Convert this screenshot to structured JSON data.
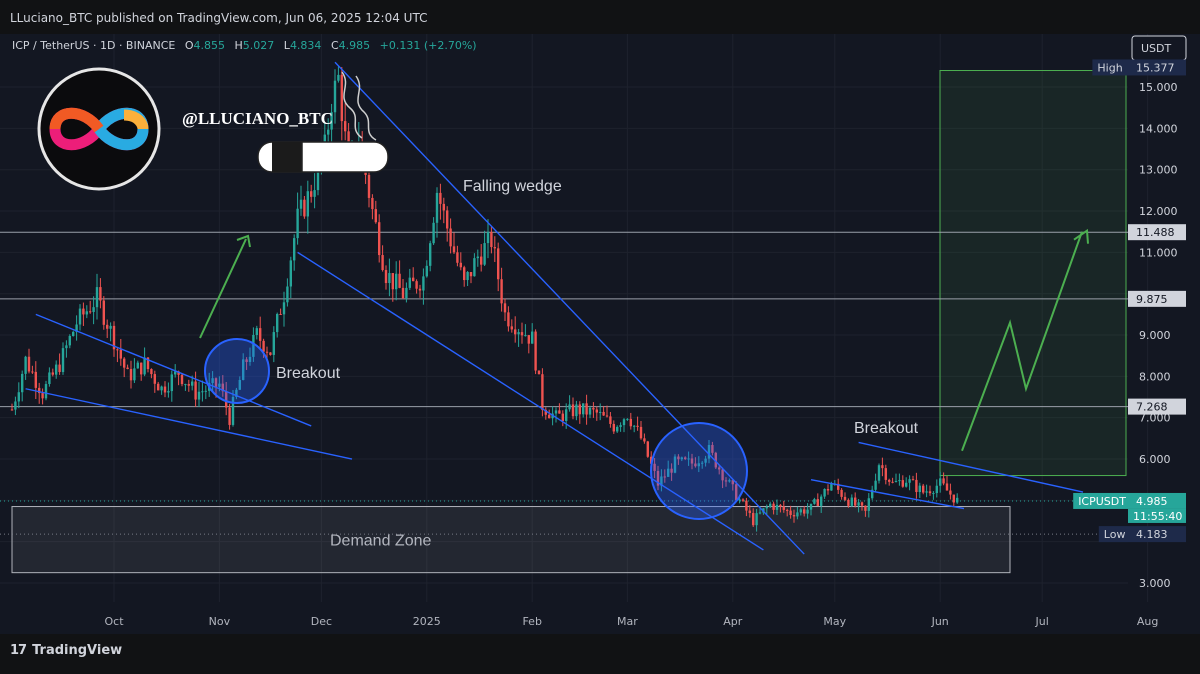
{
  "publisher": "LLuciano_BTC published on TradingView.com, Jun 06, 2025 12:04 UTC",
  "footer_brand": "TradingView",
  "legend": {
    "symbol": "ICP / TetherUS · 1D · BINANCE",
    "o_label": "O",
    "o": "4.855",
    "h_label": "H",
    "h": "5.027",
    "l_label": "L",
    "l": "4.834",
    "c_label": "C",
    "c": "4.985",
    "change": "+0.131 (+2.70%)"
  },
  "handle": "@LLUCIANO_BTC",
  "currency": "USDT",
  "annotations": {
    "falling_wedge": "Falling wedge",
    "breakout_left": "Breakout",
    "breakout_right": "Breakout",
    "demand_zone": "Demand Zone"
  },
  "price_tags": {
    "high_label": "High",
    "high_value": "15.377",
    "level_1": "11.488",
    "level_2": "9.875",
    "level_3": "7.268",
    "current_label": "ICPUSDT",
    "current_value": "4.985",
    "countdown": "11:55:40",
    "low_label": "Low",
    "low_value": "4.183"
  },
  "colors": {
    "bull": "#26a69a",
    "bear": "#ef5350",
    "trendline": "#2962ff",
    "arrow": "#4caf50",
    "target_box": "#2e7d32"
  },
  "chart_data": {
    "type": "candlestick",
    "symbol": "ICP / TetherUS",
    "interval": "1D",
    "exchange": "BINANCE",
    "y_axis_ticks": [
      3.0,
      4.0,
      5.0,
      6.0,
      7.0,
      8.0,
      9.0,
      10.0,
      11.0,
      12.0,
      13.0,
      14.0,
      15.0
    ],
    "y_axis_tick_labels": [
      "3.000",
      "",
      "",
      "6.000",
      "7.000",
      "8.000",
      "9.000",
      "",
      "11.000",
      "12.000",
      "13.000",
      "14.000",
      "15.000"
    ],
    "ylim": [
      2.5,
      16.0
    ],
    "x_axis_labels": [
      "Oct",
      "Nov",
      "Dec",
      "2025",
      "Feb",
      "Mar",
      "Apr",
      "May",
      "Jun",
      "Jul",
      "Aug"
    ],
    "horizontal_levels": [
      11.488,
      9.875,
      7.268
    ],
    "high": 15.377,
    "low": 4.183,
    "last": 4.985,
    "demand_zone": [
      3.25,
      4.85
    ],
    "price_path": [
      [
        "2024-09-01",
        7.2
      ],
      [
        "2024-09-05",
        8.4
      ],
      [
        "2024-09-10",
        7.6
      ],
      [
        "2024-09-15",
        8.3
      ],
      [
        "2024-09-20",
        9.3
      ],
      [
        "2024-09-26",
        9.9
      ],
      [
        "2024-10-01",
        8.9
      ],
      [
        "2024-10-05",
        8.0
      ],
      [
        "2024-10-10",
        8.3
      ],
      [
        "2024-10-15",
        7.7
      ],
      [
        "2024-10-20",
        8.1
      ],
      [
        "2024-10-25",
        7.6
      ],
      [
        "2024-11-01",
        7.8
      ],
      [
        "2024-11-04",
        7.0
      ],
      [
        "2024-11-08",
        8.2
      ],
      [
        "2024-11-12",
        9.0
      ],
      [
        "2024-11-16",
        8.6
      ],
      [
        "2024-11-20",
        10.0
      ],
      [
        "2024-11-24",
        11.8
      ],
      [
        "2024-11-28",
        12.5
      ],
      [
        "2024-12-02",
        13.5
      ],
      [
        "2024-12-04",
        14.7
      ],
      [
        "2024-12-06",
        15.2
      ],
      [
        "2024-12-09",
        13.0
      ],
      [
        "2024-12-12",
        13.8
      ],
      [
        "2024-12-16",
        12.0
      ],
      [
        "2024-12-20",
        10.5
      ],
      [
        "2024-12-25",
        10.0
      ],
      [
        "2024-12-31",
        10.4
      ],
      [
        "2025-01-04",
        12.5
      ],
      [
        "2025-01-08",
        11.3
      ],
      [
        "2025-01-12",
        10.2
      ],
      [
        "2025-01-16",
        10.9
      ],
      [
        "2025-01-20",
        11.3
      ],
      [
        "2025-01-24",
        9.5
      ],
      [
        "2025-01-28",
        9.2
      ],
      [
        "2025-02-01",
        8.9
      ],
      [
        "2025-02-04",
        7.3
      ],
      [
        "2025-02-08",
        7.0
      ],
      [
        "2025-02-14",
        7.2
      ],
      [
        "2025-02-20",
        7.1
      ],
      [
        "2025-02-25",
        6.8
      ],
      [
        "2025-03-01",
        7.1
      ],
      [
        "2025-03-05",
        6.5
      ],
      [
        "2025-03-10",
        5.4
      ],
      [
        "2025-03-15",
        5.9
      ],
      [
        "2025-03-20",
        5.9
      ],
      [
        "2025-03-25",
        6.2
      ],
      [
        "2025-03-30",
        5.5
      ],
      [
        "2025-04-03",
        5.0
      ],
      [
        "2025-04-07",
        4.5
      ],
      [
        "2025-04-12",
        4.9
      ],
      [
        "2025-04-18",
        4.7
      ],
      [
        "2025-04-24",
        4.8
      ],
      [
        "2025-04-30",
        5.4
      ],
      [
        "2025-05-05",
        5.0
      ],
      [
        "2025-05-10",
        4.7
      ],
      [
        "2025-05-14",
        5.9
      ],
      [
        "2025-05-18",
        5.4
      ],
      [
        "2025-05-22",
        5.5
      ],
      [
        "2025-05-27",
        5.2
      ],
      [
        "2025-06-01",
        5.4
      ],
      [
        "2025-06-06",
        4.985
      ]
    ],
    "projection_path": [
      [
        0,
        6.2
      ],
      [
        1,
        9.3
      ],
      [
        2,
        7.7
      ],
      [
        3,
        11.5
      ]
    ],
    "target_zone": [
      5.6,
      15.4
    ]
  }
}
